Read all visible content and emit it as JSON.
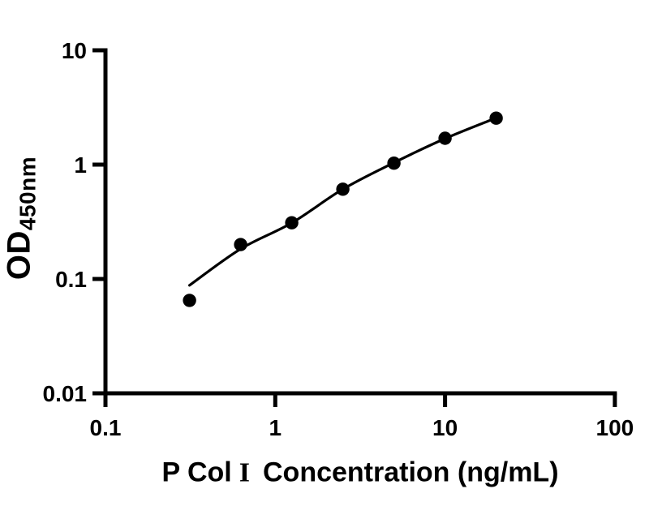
{
  "figure": {
    "background_color": "#ffffff",
    "axis_color": "#000000",
    "marker_color": "#000000",
    "ylabel_main": "OD",
    "ylabel_sub": "450nm",
    "xlabel_prefix": "P Col",
    "xlabel_numeral": "I",
    "xlabel_suffix": "Concentration (ng/mL)"
  },
  "chart_data": {
    "type": "scatter",
    "title": "",
    "xlabel": "P Col I  Concentration (ng/mL)",
    "ylabel": "OD450nm",
    "xscale": "log",
    "yscale": "log",
    "xlim": [
      0.1,
      100
    ],
    "ylim": [
      0.01,
      10
    ],
    "x_tick_labels": [
      "0.1",
      "1",
      "10",
      "100"
    ],
    "y_tick_labels": [
      "10",
      "1",
      "0.1",
      "0.01"
    ],
    "grid": false,
    "legend": false,
    "marker": "filled-circle",
    "x": [
      0.3125,
      0.625,
      1.25,
      2.5,
      5,
      10,
      20
    ],
    "y": [
      0.065,
      0.2,
      0.31,
      0.61,
      1.03,
      1.7,
      2.55
    ],
    "fit_curve": {
      "x": [
        0.3125,
        0.625,
        1.25,
        2.5,
        5,
        10,
        20
      ],
      "y": [
        0.088,
        0.183,
        0.309,
        0.61,
        1.04,
        1.69,
        2.56
      ]
    }
  }
}
